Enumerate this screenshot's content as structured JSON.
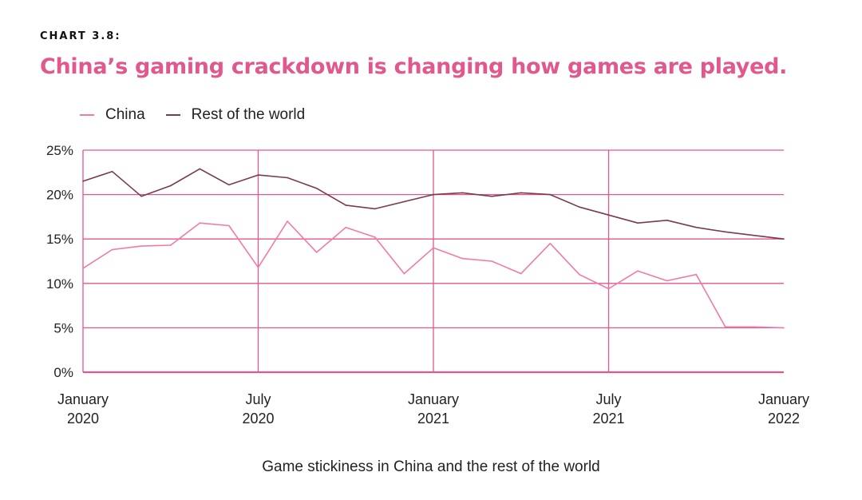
{
  "kicker": "CHART 3.8:",
  "title": "China’s gaming crackdown is changing how games are played.",
  "caption": "Game stickiness in China and the rest of the world",
  "colors": {
    "accent": "#e0588d",
    "china": "#f07aa7",
    "rest": "#7a3a52",
    "grid": "#e0588d"
  },
  "legend": [
    {
      "label": "China",
      "series": "china"
    },
    {
      "label": "Rest of the world",
      "series": "rest"
    }
  ],
  "chart_data": {
    "type": "line",
    "title": "China’s gaming crackdown is changing how games are played.",
    "xlabel": "Game stickiness in China and the rest of the world",
    "ylabel": "",
    "ylim": [
      0,
      25
    ],
    "y_ticks": [
      "0%",
      "5%",
      "10%",
      "15%",
      "20%",
      "25%"
    ],
    "x_tick_labels": [
      {
        "line1": "January",
        "line2": "2020"
      },
      {
        "line1": "July",
        "line2": "2020"
      },
      {
        "line1": "January",
        "line2": "2021"
      },
      {
        "line1": "July",
        "line2": "2021"
      },
      {
        "line1": "January",
        "line2": "2022"
      }
    ],
    "x_ticks_index": [
      0,
      6,
      12,
      18,
      24
    ],
    "x": [
      "Jan 2020",
      "Feb 2020",
      "Mar 2020",
      "Apr 2020",
      "May 2020",
      "Jun 2020",
      "Jul 2020",
      "Aug 2020",
      "Sep 2020",
      "Oct 2020",
      "Nov 2020",
      "Dec 2020",
      "Jan 2021",
      "Feb 2021",
      "Mar 2021",
      "Apr 2021",
      "May 2021",
      "Jun 2021",
      "Jul 2021",
      "Aug 2021",
      "Sep 2021",
      "Oct 2021",
      "Nov 2021",
      "Dec 2021",
      "Jan 2022"
    ],
    "grid": true,
    "legend_position": "top-left",
    "series": [
      {
        "name": "China",
        "key": "china",
        "values": [
          11.7,
          13.8,
          14.2,
          14.3,
          16.8,
          16.5,
          11.8,
          17.0,
          13.5,
          16.3,
          15.2,
          11.1,
          14.0,
          12.8,
          12.5,
          11.1,
          14.5,
          11.0,
          9.4,
          11.4,
          10.3,
          11.0,
          5.1,
          5.1,
          5.0
        ]
      },
      {
        "name": "Rest of the world",
        "key": "rest",
        "values": [
          21.5,
          22.6,
          19.8,
          21.0,
          22.9,
          21.1,
          22.2,
          21.9,
          20.7,
          18.8,
          18.4,
          19.2,
          20.0,
          20.2,
          19.8,
          20.2,
          20.0,
          18.6,
          17.7,
          16.8,
          17.1,
          16.3,
          15.8,
          15.4,
          15.0
        ]
      }
    ]
  }
}
